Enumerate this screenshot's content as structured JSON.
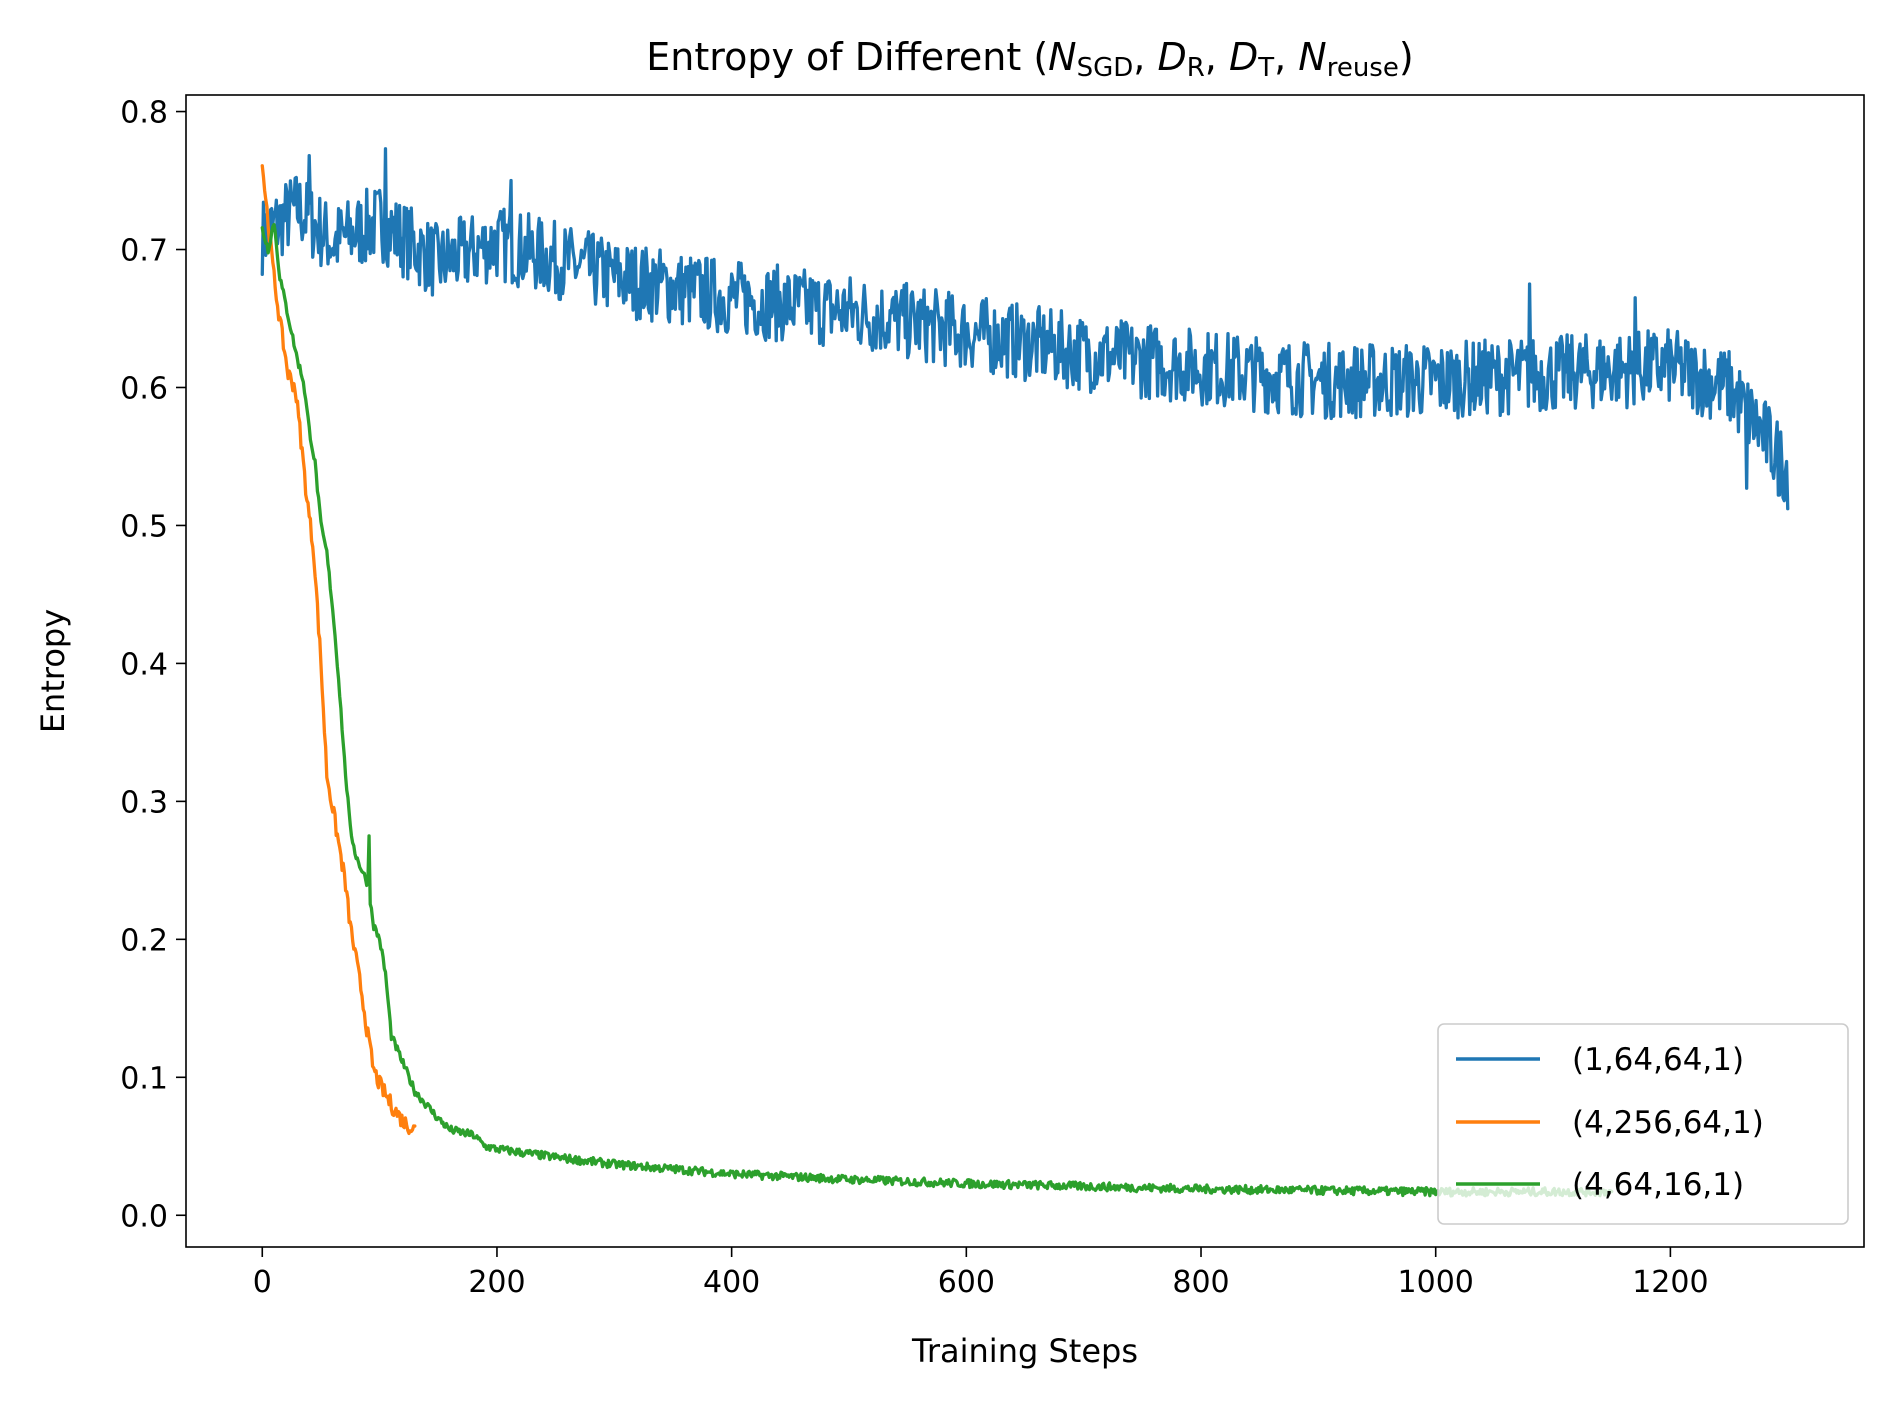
{
  "chart_data": {
    "type": "line",
    "title": {
      "prefix": "Entropy of  Different (",
      "parts": [
        {
          "base": "N",
          "sub": "SGD"
        },
        {
          "base": "D",
          "sub": "R"
        },
        {
          "base": "D",
          "sub": "T"
        },
        {
          "base": "N",
          "sub": "reuse"
        }
      ],
      "separator": ", ",
      "suffix": ")"
    },
    "xlabel": "Training Steps",
    "ylabel": "Entropy",
    "xlim": [
      -65,
      1365
    ],
    "ylim": [
      -0.023,
      0.812
    ],
    "xticks": [
      0,
      200,
      400,
      600,
      800,
      1000,
      1200
    ],
    "xtick_labels": [
      "0",
      "200",
      "400",
      "600",
      "800",
      "1000",
      "1200"
    ],
    "yticks": [
      0.0,
      0.1,
      0.2,
      0.3,
      0.4,
      0.5,
      0.6,
      0.7,
      0.8
    ],
    "ytick_labels": [
      "0.0",
      "0.1",
      "0.2",
      "0.3",
      "0.4",
      "0.5",
      "0.6",
      "0.7",
      "0.8"
    ],
    "grid": false,
    "legend_position": "lower-right",
    "series": [
      {
        "name": "(1,64,64,1)",
        "color": "#1f77b4",
        "noise": 0.028,
        "keypoints": [
          [
            0,
            0.71
          ],
          [
            30,
            0.73
          ],
          [
            60,
            0.705
          ],
          [
            100,
            0.72
          ],
          [
            150,
            0.69
          ],
          [
            200,
            0.705
          ],
          [
            300,
            0.68
          ],
          [
            400,
            0.665
          ],
          [
            500,
            0.655
          ],
          [
            600,
            0.64
          ],
          [
            700,
            0.625
          ],
          [
            800,
            0.615
          ],
          [
            900,
            0.605
          ],
          [
            1000,
            0.605
          ],
          [
            1100,
            0.61
          ],
          [
            1200,
            0.615
          ],
          [
            1250,
            0.6
          ],
          [
            1280,
            0.565
          ],
          [
            1300,
            0.54
          ]
        ],
        "peaks": [
          [
            40,
            0.768
          ],
          [
            105,
            0.773
          ],
          [
            212,
            0.75
          ],
          [
            1080,
            0.675
          ],
          [
            1170,
            0.665
          ],
          [
            1265,
            0.527
          ],
          [
            1292,
            0.522
          ]
        ]
      },
      {
        "name": "(4,256,64,1)",
        "color": "#ff7f0e",
        "noise": 0.006,
        "keypoints": [
          [
            0,
            0.762
          ],
          [
            5,
            0.72
          ],
          [
            10,
            0.68
          ],
          [
            15,
            0.648
          ],
          [
            22,
            0.61
          ],
          [
            28,
            0.6
          ],
          [
            32,
            0.57
          ],
          [
            38,
            0.52
          ],
          [
            44,
            0.48
          ],
          [
            50,
            0.4
          ],
          [
            55,
            0.32
          ],
          [
            60,
            0.295
          ],
          [
            65,
            0.27
          ],
          [
            70,
            0.245
          ],
          [
            75,
            0.21
          ],
          [
            80,
            0.185
          ],
          [
            85,
            0.16
          ],
          [
            90,
            0.13
          ],
          [
            95,
            0.105
          ],
          [
            100,
            0.095
          ],
          [
            110,
            0.08
          ],
          [
            120,
            0.068
          ],
          [
            130,
            0.062
          ]
        ]
      },
      {
        "name": "(4,64,16,1)",
        "color": "#2ca02c",
        "noise": 0.003,
        "keypoints": [
          [
            0,
            0.715
          ],
          [
            5,
            0.7
          ],
          [
            10,
            0.72
          ],
          [
            15,
            0.68
          ],
          [
            20,
            0.66
          ],
          [
            25,
            0.64
          ],
          [
            30,
            0.62
          ],
          [
            35,
            0.605
          ],
          [
            40,
            0.57
          ],
          [
            45,
            0.545
          ],
          [
            50,
            0.5
          ],
          [
            55,
            0.48
          ],
          [
            60,
            0.44
          ],
          [
            65,
            0.39
          ],
          [
            70,
            0.33
          ],
          [
            75,
            0.28
          ],
          [
            80,
            0.26
          ],
          [
            85,
            0.25
          ],
          [
            90,
            0.24
          ],
          [
            95,
            0.21
          ],
          [
            100,
            0.2
          ],
          [
            105,
            0.175
          ],
          [
            110,
            0.13
          ],
          [
            120,
            0.11
          ],
          [
            130,
            0.09
          ],
          [
            140,
            0.08
          ],
          [
            150,
            0.07
          ],
          [
            160,
            0.062
          ],
          [
            180,
            0.058
          ],
          [
            190,
            0.05
          ],
          [
            200,
            0.048
          ],
          [
            250,
            0.042
          ],
          [
            300,
            0.037
          ],
          [
            400,
            0.03
          ],
          [
            500,
            0.026
          ],
          [
            600,
            0.023
          ],
          [
            700,
            0.021
          ],
          [
            800,
            0.019
          ],
          [
            900,
            0.018
          ],
          [
            1000,
            0.017
          ],
          [
            1100,
            0.017
          ],
          [
            1150,
            0.017
          ]
        ],
        "peaks": [
          [
            91,
            0.275
          ]
        ]
      }
    ]
  }
}
